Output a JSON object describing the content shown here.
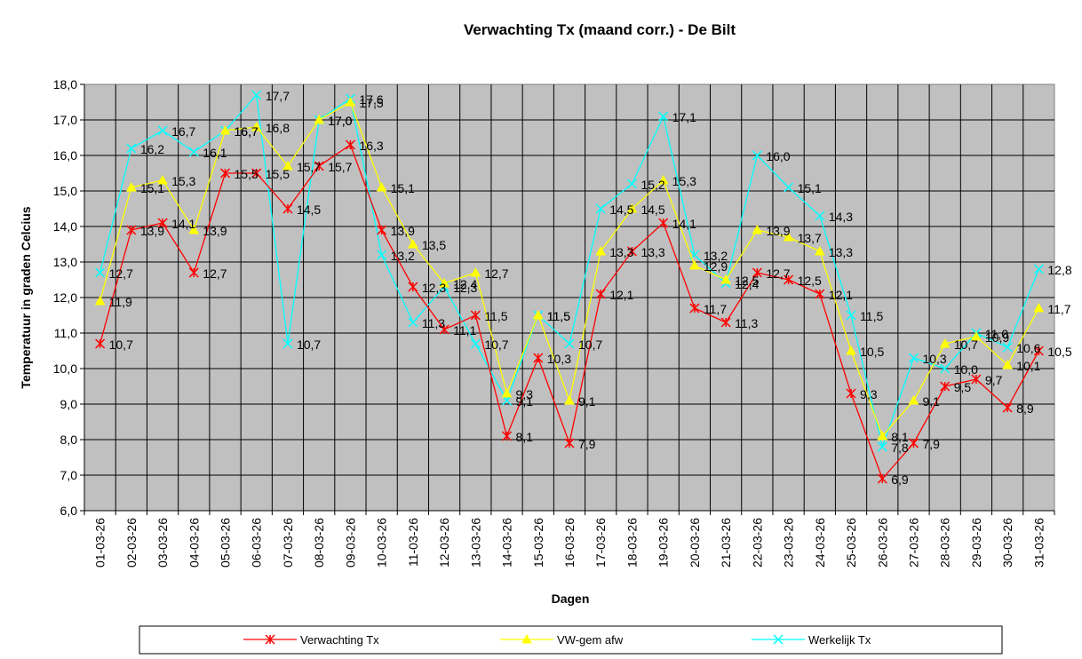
{
  "chart_data": {
    "type": "line",
    "title": "Verwachting Tx (maand corr.) - De Bilt",
    "xlabel": "Dagen",
    "ylabel": "Temperatuur in graden Celcius",
    "ylim": [
      6.0,
      18.0
    ],
    "ytick_step": 1.0,
    "grid": true,
    "legend_position": "bottom",
    "plot_background": "#c0c0c0",
    "categories": [
      "01-03-26",
      "02-03-26",
      "03-03-26",
      "04-03-26",
      "05-03-26",
      "06-03-26",
      "07-03-26",
      "08-03-26",
      "09-03-26",
      "10-03-26",
      "11-03-26",
      "12-03-26",
      "13-03-26",
      "14-03-26",
      "15-03-26",
      "16-03-26",
      "17-03-26",
      "18-03-26",
      "19-03-26",
      "20-03-26",
      "21-03-26",
      "22-03-26",
      "23-03-26",
      "24-03-26",
      "25-03-26",
      "26-03-26",
      "27-03-26",
      "28-03-26",
      "29-03-26",
      "30-03-26",
      "31-03-26"
    ],
    "series": [
      {
        "name": "Verwachting Tx",
        "color": "#ff0000",
        "marker": "star",
        "values": [
          10.7,
          13.9,
          14.1,
          12.7,
          15.5,
          15.5,
          14.5,
          15.7,
          16.3,
          13.9,
          12.3,
          11.1,
          11.5,
          8.1,
          10.3,
          7.9,
          12.1,
          13.3,
          14.1,
          11.7,
          11.3,
          12.7,
          12.5,
          12.1,
          9.3,
          6.9,
          7.9,
          9.5,
          9.7,
          8.9,
          10.5
        ]
      },
      {
        "name": "VW-gem afw",
        "color": "#ffff00",
        "marker": "triangle",
        "values": [
          11.9,
          15.1,
          15.3,
          13.9,
          16.7,
          16.8,
          15.7,
          17.0,
          17.5,
          15.1,
          13.5,
          12.4,
          12.7,
          9.3,
          11.5,
          9.1,
          13.3,
          14.5,
          15.3,
          12.9,
          12.5,
          13.9,
          13.7,
          13.3,
          10.5,
          8.1,
          9.1,
          10.7,
          10.9,
          10.1,
          11.7
        ]
      },
      {
        "name": "Werkelijk Tx",
        "color": "#00ffff",
        "marker": "x",
        "values": [
          12.7,
          16.2,
          16.7,
          16.1,
          16.7,
          17.7,
          10.7,
          17.0,
          17.6,
          13.2,
          11.3,
          12.3,
          10.7,
          9.1,
          11.5,
          10.7,
          14.5,
          15.2,
          17.1,
          13.2,
          12.4,
          16.0,
          15.1,
          14.3,
          11.5,
          7.8,
          10.3,
          10.0,
          11.0,
          10.6,
          12.8
        ]
      }
    ]
  }
}
